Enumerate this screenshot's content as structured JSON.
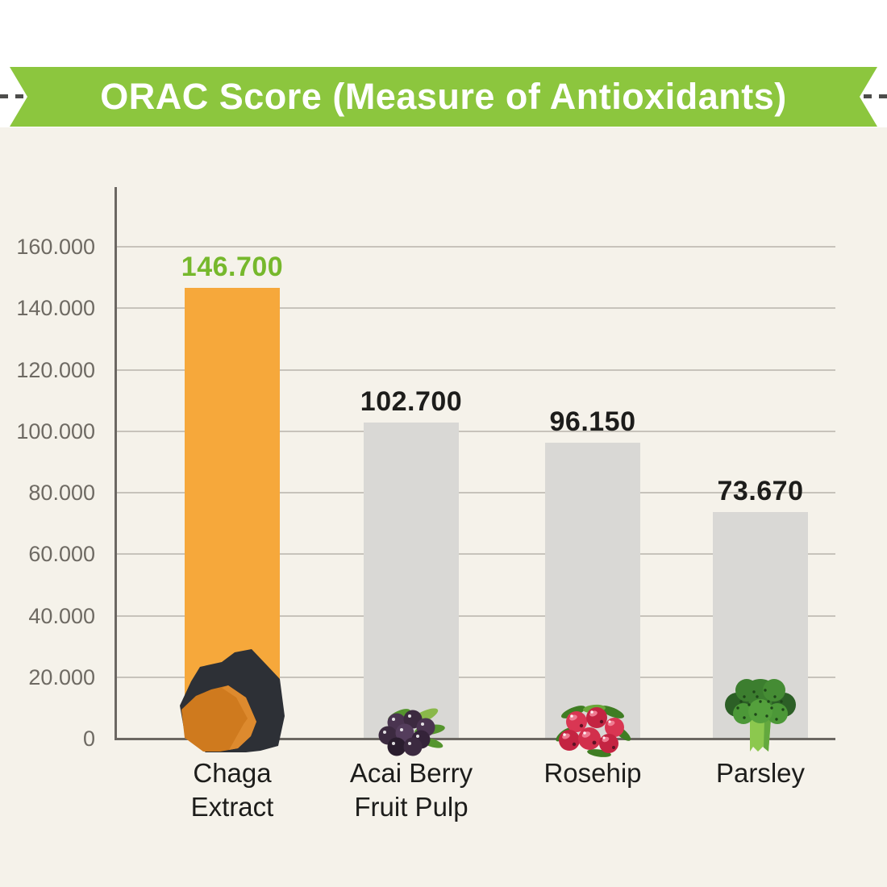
{
  "banner": {
    "title": "ORAC Score (Measure of Antioxidants)"
  },
  "colors": {
    "ribbon_green": "#8cc63e",
    "background_cream": "#f5f2ea",
    "top_band_white": "#ffffff",
    "highlight_orange": "#f6a83b",
    "bar_gray": "#d9d8d5",
    "value_green": "#76b82c",
    "value_black": "#1d1d1b",
    "axis_gray": "#6b6762",
    "gridline_gray": "#c7c3bb"
  },
  "chart_data": {
    "type": "bar",
    "title": "ORAC Score (Measure of Antioxidants)",
    "xlabel": "",
    "ylabel": "",
    "ylim": [
      0,
      160000
    ],
    "y_tick_interval": 20000,
    "y_tick_labels": [
      "0",
      "20.000",
      "40.000",
      "60.000",
      "80.000",
      "100.000",
      "120.000",
      "140.000",
      "160.000"
    ],
    "grid": true,
    "legend": "none",
    "categories": [
      "Chaga Extract",
      "Acai Berry Fruit Pulp",
      "Rosehip",
      "Parsley"
    ],
    "values": [
      146700,
      102700,
      96150,
      73670
    ],
    "items": [
      {
        "label_lines": [
          "Chaga",
          "Extract"
        ],
        "value": 146700,
        "value_label": "146.700",
        "bar_color": "#f6a83b",
        "value_color": "#76b82c",
        "icon": "chaga-icon"
      },
      {
        "label_lines": [
          "Acai Berry",
          "Fruit Pulp"
        ],
        "value": 102700,
        "value_label": "102.700",
        "bar_color": "#d9d8d5",
        "value_color": "#1d1d1b",
        "icon": "acai-berries-icon"
      },
      {
        "label_lines": [
          "Rosehip"
        ],
        "value": 96150,
        "value_label": "96.150",
        "bar_color": "#d9d8d5",
        "value_color": "#1d1d1b",
        "icon": "rosehip-berries-icon"
      },
      {
        "label_lines": [
          "Parsley"
        ],
        "value": 73670,
        "value_label": "73.670",
        "bar_color": "#d9d8d5",
        "value_color": "#1d1d1b",
        "icon": "broccoli-icon"
      }
    ]
  }
}
